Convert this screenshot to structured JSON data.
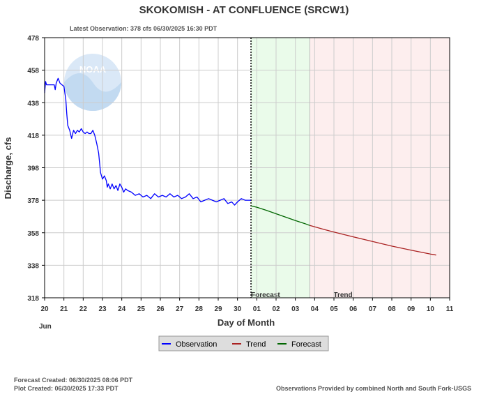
{
  "chart_data": {
    "type": "line",
    "title": "SKOKOMISH - AT CONFLUENCE  (SRCW1)",
    "subtitle": "Latest Observation: 378 cfs 06/30/2025 16:30 PDT",
    "xlabel": "Day of Month",
    "ylabel": "Discharge, cfs",
    "month_label": "Jun",
    "x_unit": "day (June 20 = 0)",
    "xlim": [
      0,
      21
    ],
    "ylim": [
      318,
      478
    ],
    "y_ticks": [
      318,
      338,
      358,
      378,
      398,
      418,
      438,
      458,
      478
    ],
    "x_tick_labels": [
      "20",
      "21",
      "22",
      "23",
      "24",
      "25",
      "26",
      "27",
      "28",
      "29",
      "30",
      "01",
      "02",
      "03",
      "04",
      "05",
      "06",
      "07",
      "08",
      "09",
      "10",
      "11"
    ],
    "grid": true,
    "legend_position": "bottom-center",
    "regions": [
      {
        "name": "Forecast",
        "label": "Forecast",
        "start": 10.7,
        "end": 13.75,
        "color": "#eafbea"
      },
      {
        "name": "Trend",
        "label": "Trend",
        "start": 13.75,
        "end": 21.0,
        "color": "#fdeeee"
      }
    ],
    "now_marker_x": 10.7,
    "legend": [
      {
        "name": "Observation",
        "color": "#0000ff"
      },
      {
        "name": "Trend",
        "color": "#aa2222"
      },
      {
        "name": "Forecast",
        "color": "#006600"
      }
    ],
    "series": [
      {
        "name": "Observation",
        "color": "#0000ff",
        "x": [
          0.0,
          0.05,
          0.1,
          0.2,
          0.3,
          0.4,
          0.5,
          0.55,
          0.6,
          0.7,
          0.8,
          0.9,
          1.0,
          1.1,
          1.15,
          1.2,
          1.3,
          1.4,
          1.5,
          1.6,
          1.7,
          1.8,
          1.9,
          2.0,
          2.1,
          2.2,
          2.3,
          2.4,
          2.5,
          2.6,
          2.7,
          2.8,
          2.9,
          3.0,
          3.1,
          3.2,
          3.25,
          3.3,
          3.4,
          3.5,
          3.6,
          3.7,
          3.8,
          3.9,
          4.0,
          4.1,
          4.2,
          4.3,
          4.5,
          4.7,
          4.9,
          5.1,
          5.3,
          5.5,
          5.7,
          5.9,
          6.1,
          6.3,
          6.5,
          6.7,
          6.9,
          7.1,
          7.3,
          7.5,
          7.7,
          7.9,
          8.1,
          8.3,
          8.5,
          8.7,
          8.9,
          9.1,
          9.3,
          9.5,
          9.7,
          9.85,
          10.0,
          10.2,
          10.4,
          10.6,
          10.7
        ],
        "y": [
          444,
          451,
          449,
          449,
          449,
          449,
          449,
          446,
          450,
          453,
          450,
          449,
          448,
          440,
          431,
          424,
          421,
          416,
          421,
          419,
          421,
          420,
          422,
          420,
          419,
          420,
          419,
          419,
          421,
          418,
          413,
          407,
          395,
          391,
          393,
          390,
          386,
          388,
          385,
          388,
          385,
          387,
          384,
          388,
          386,
          383,
          385,
          384,
          383,
          381,
          382,
          380,
          381,
          379,
          382,
          380,
          381,
          380,
          382,
          380,
          381,
          379,
          380,
          382,
          379,
          380,
          377,
          378,
          379,
          378,
          377,
          378,
          379,
          376,
          377,
          375,
          377,
          379,
          378,
          378,
          378
        ]
      },
      {
        "name": "Forecast",
        "color": "#006600",
        "x": [
          10.7,
          11.0,
          11.5,
          12.0,
          12.5,
          13.0,
          13.5,
          13.75
        ],
        "y": [
          374.5,
          373.7,
          371.8,
          369.7,
          367.6,
          365.5,
          363.6,
          362.5
        ]
      },
      {
        "name": "Trend",
        "color": "#aa2222",
        "x": [
          13.75,
          14.5,
          15.0,
          16.0,
          17.0,
          18.0,
          19.0,
          20.0,
          20.3
        ],
        "y": [
          362.5,
          360.0,
          358.4,
          355.5,
          352.6,
          349.8,
          347.3,
          344.9,
          344.3
        ]
      }
    ]
  },
  "footer": {
    "forecast_created": "Forecast Created: 06/30/2025 08:06 PDT",
    "plot_created": "Plot Created: 06/30/2025 17:33 PDT",
    "source": "Observations Provided by combined North and South Fork-USGS"
  },
  "logo": {
    "text": "NOAA",
    "icon": "noaa-logo"
  }
}
